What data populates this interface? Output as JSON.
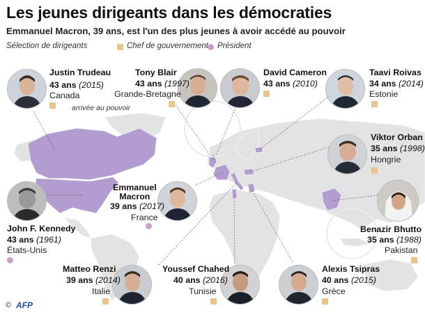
{
  "title": "Les jeunes dirigeants dans les démocraties",
  "subtitle": "Emmanuel Macron, 39 ans, est l'un des plus jeunes à avoir accédé au pouvoir",
  "legend": {
    "label": "Sélection de dirigeants",
    "head_of_government": "Chef de gouvernement",
    "president": "Président"
  },
  "note": "arrivée au pouvoir",
  "colors": {
    "map_highlight": "#b39ccf",
    "map_base": "#e3e3e3",
    "head_of_government": "#e9c48c",
    "president": "#c9a2c6"
  },
  "leaders": [
    {
      "name": "Justin Trudeau",
      "age": "43 ans",
      "year": "(2015)",
      "country": "Canada",
      "role": "head_of_government"
    },
    {
      "name": "Tony Blair",
      "age": "43 ans",
      "year": "(1997)",
      "country": "Grande-Bretagne",
      "role": "head_of_government"
    },
    {
      "name": "David Cameron",
      "age": "43 ans",
      "year": "(2010)",
      "country": "",
      "role": "head_of_government"
    },
    {
      "name": "Taavi Roivas",
      "age": "34 ans",
      "year": "(2014)",
      "country": "Estonie",
      "role": "head_of_government"
    },
    {
      "name": "Viktor Orban",
      "age": "35 ans",
      "year": "(1998)",
      "country": "Hongrie",
      "role": "head_of_government"
    },
    {
      "name": "Emmanuel Macron",
      "age": "39 ans",
      "year": "(2017)",
      "country": "France",
      "role": "president"
    },
    {
      "name": "John F. Kennedy",
      "age": "43 ans",
      "year": "(1961)",
      "country": "États-Unis",
      "role": "president"
    },
    {
      "name": "Benazir Bhutto",
      "age": "35 ans",
      "year": "(1988)",
      "country": "Pakistan",
      "role": "head_of_government"
    },
    {
      "name": "Matteo Renzi",
      "age": "39 ans",
      "year": "(2014)",
      "country": "Italie",
      "role": "head_of_government"
    },
    {
      "name": "Youssef Chahed",
      "age": "40 ans",
      "year": "(2016)",
      "country": "Tunisie",
      "role": "head_of_government"
    },
    {
      "name": "Alexis Tsipras",
      "age": "40 ans",
      "year": "(2015)",
      "country": "Grèce",
      "role": "head_of_government"
    }
  ],
  "copyright": "©",
  "agency": "AFP"
}
